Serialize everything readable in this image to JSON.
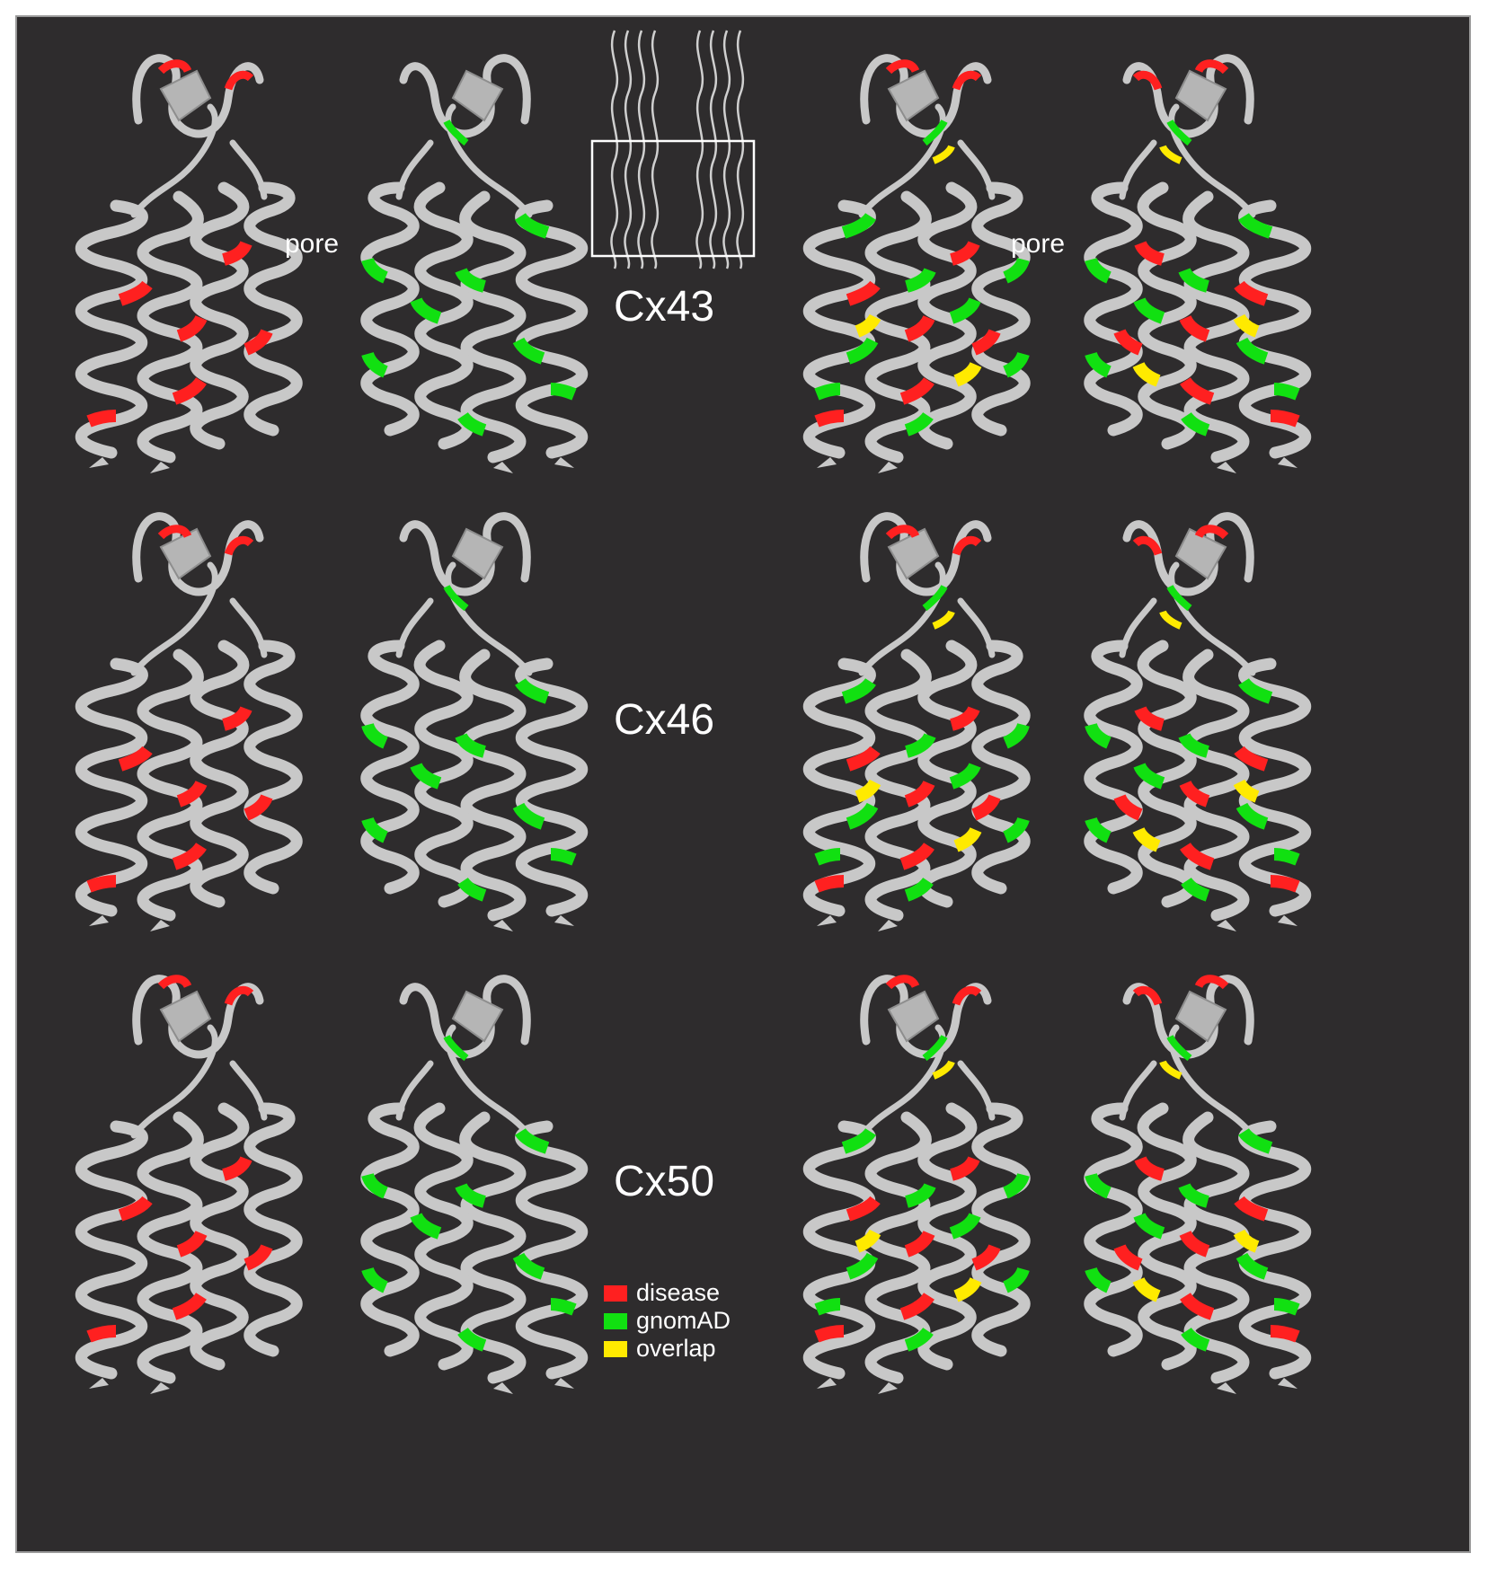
{
  "colors": {
    "background": "#2e2c2d",
    "ribbon": "#c8c8c8",
    "ribbon_shadow": "#8e8e8e",
    "disease": "#ff2020",
    "gnomad": "#11e011",
    "overlap": "#ffea00",
    "text": "#ffffff"
  },
  "rows": [
    {
      "id": "cx43",
      "label": "Cx43"
    },
    {
      "id": "cx46",
      "label": "Cx46"
    },
    {
      "id": "cx50",
      "label": "Cx50"
    }
  ],
  "pore_labels": [
    "pore",
    "pore"
  ],
  "legend": [
    {
      "key": "disease",
      "label": "disease"
    },
    {
      "key": "gnomad",
      "label": "gnomAD"
    },
    {
      "key": "overlap",
      "label": "overlap"
    }
  ],
  "icons": {
    "protein_structure": "ribbon-helix-bundle-icon",
    "inset": "gap-junction-overview-icon"
  }
}
